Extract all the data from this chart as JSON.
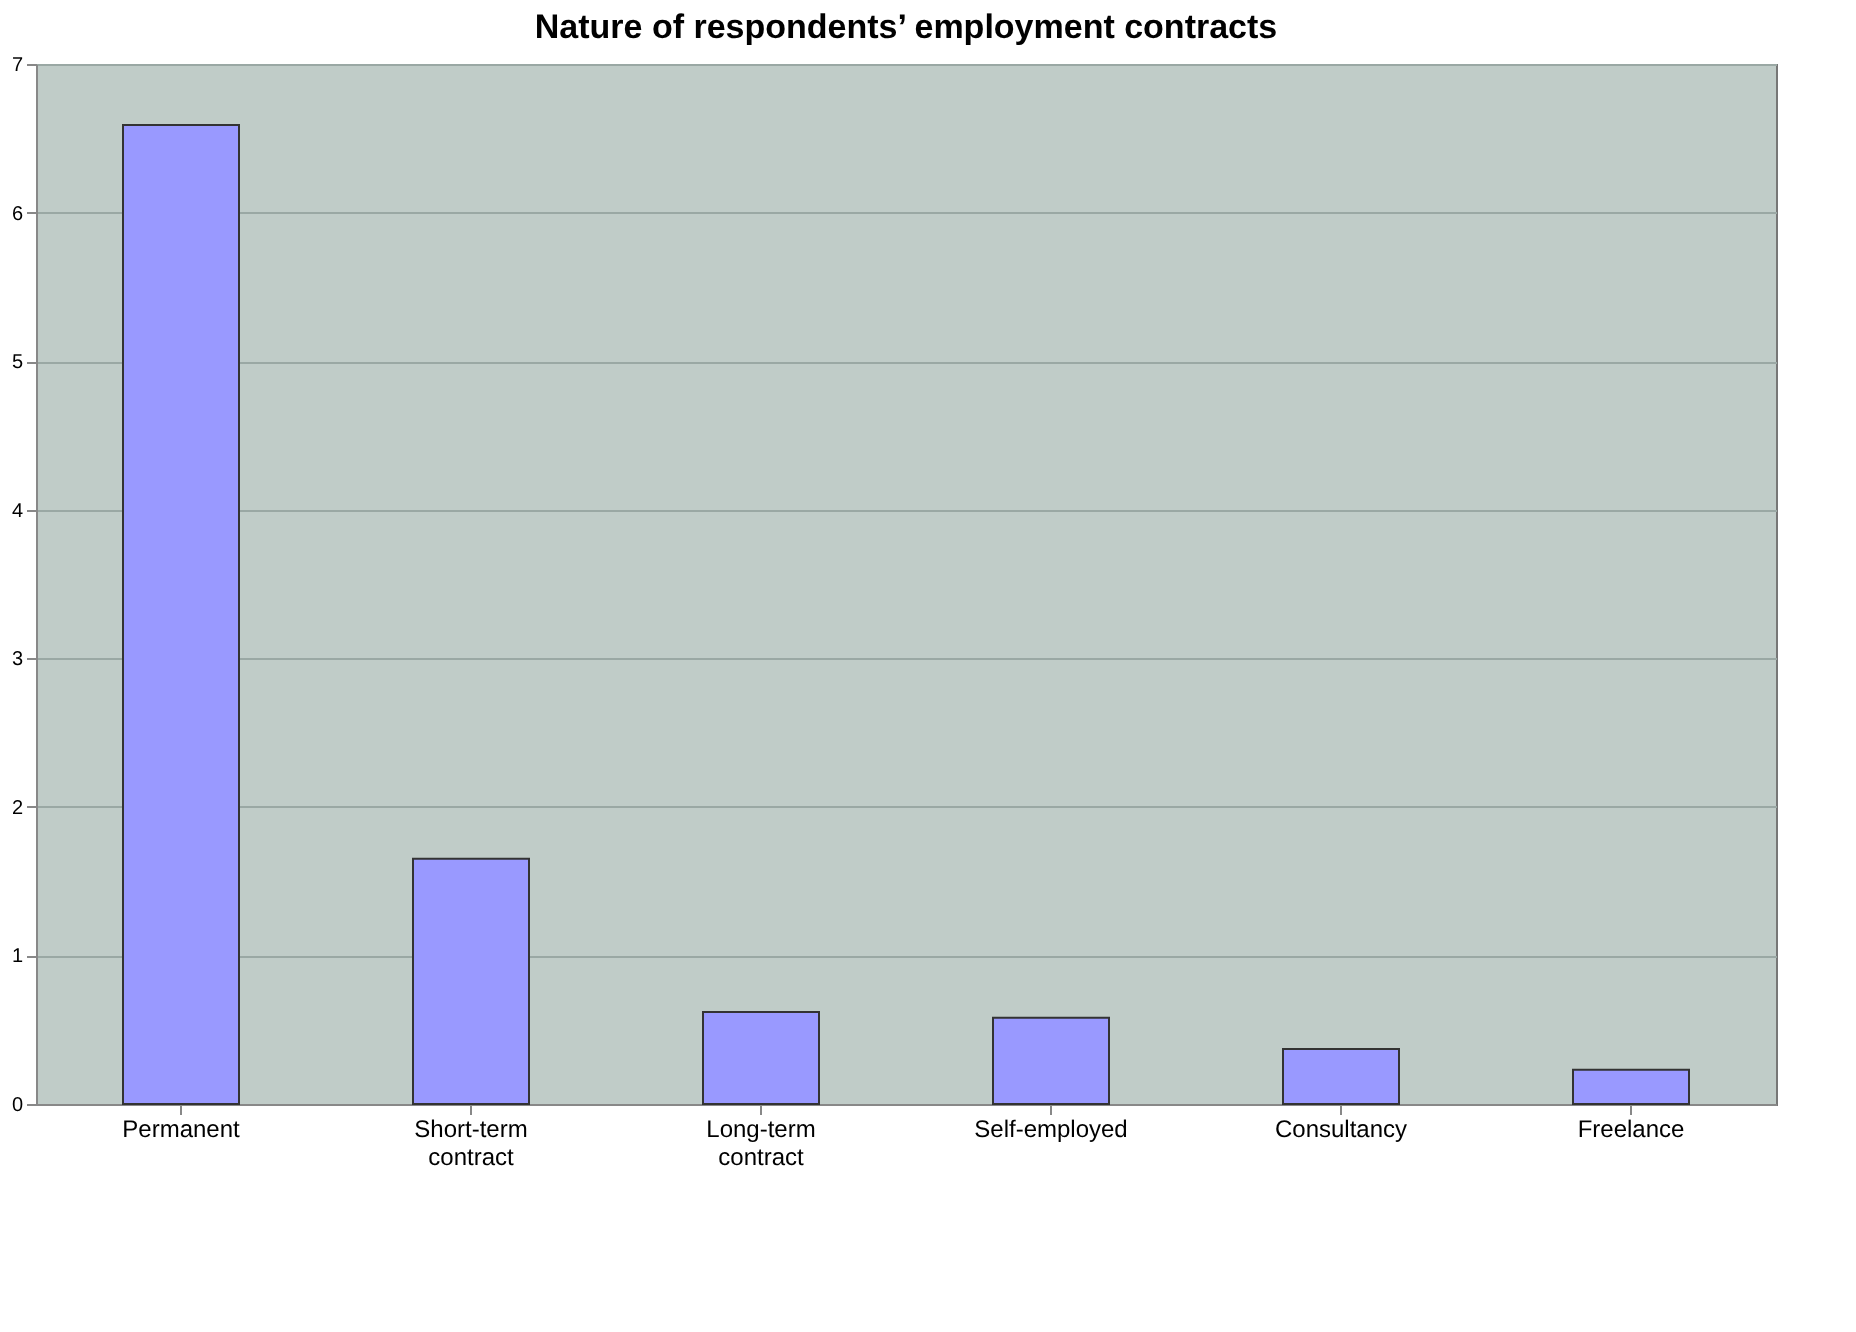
{
  "chart_data": {
    "type": "bar",
    "title": "Nature of respondents’ employment contracts",
    "categories": [
      "Permanent",
      "Short-term contract",
      "Long-term contract",
      "Self-employed",
      "Consultancy",
      "Freelance"
    ],
    "values": [
      6.59,
      1.65,
      0.62,
      0.58,
      0.37,
      0.23
    ],
    "color": "#9999ff",
    "ylim": [
      0,
      7
    ],
    "yticks": [
      0,
      1,
      2,
      3,
      4,
      5,
      6,
      7
    ],
    "grid": "y"
  }
}
